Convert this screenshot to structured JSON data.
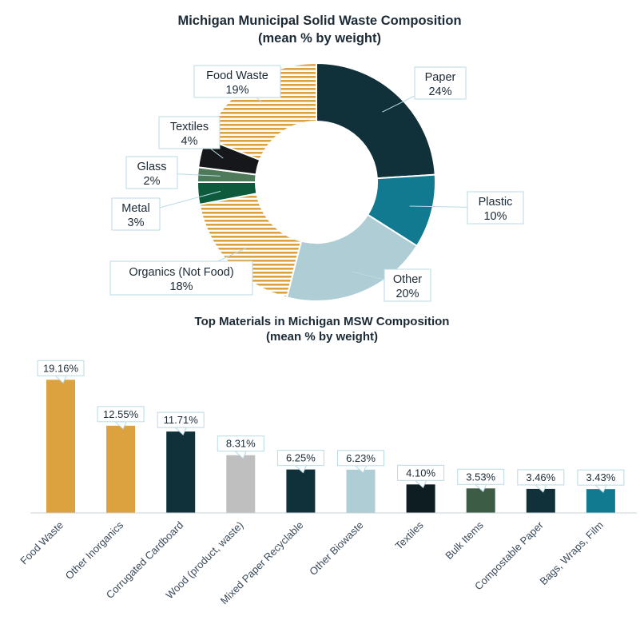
{
  "chart_data": [
    {
      "type": "pie",
      "title": "Michigan Municipal Solid Waste Composition",
      "subtitle": "(mean % by weight)",
      "slices": [
        {
          "label": "Paper",
          "value": 24,
          "display": "24%",
          "color": "#11313a",
          "pattern": "solid"
        },
        {
          "label": "Plastic",
          "value": 10,
          "display": "10%",
          "color": "#117a91",
          "pattern": "solid"
        },
        {
          "label": "Other",
          "value": 20,
          "display": "20%",
          "color": "#aecdd5",
          "pattern": "solid"
        },
        {
          "label": "Organics (Not Food)",
          "value": 18,
          "display": "18%",
          "color": "#dca240",
          "pattern": "stripes"
        },
        {
          "label": "Metal",
          "value": 3,
          "display": "3%",
          "color": "#0d5b3c",
          "pattern": "solid"
        },
        {
          "label": "Glass",
          "value": 2,
          "display": "2%",
          "color": "#4f7a5a",
          "pattern": "solid"
        },
        {
          "label": "Textiles",
          "value": 4,
          "display": "4%",
          "color": "#15171a",
          "pattern": "solid"
        },
        {
          "label": "Food Waste",
          "value": 19,
          "display": "19%",
          "color": "#dca240",
          "pattern": "stripes"
        }
      ]
    },
    {
      "type": "bar",
      "title": "Top Materials in Michigan MSW Composition",
      "subtitle": "(mean % by weight)",
      "categories": [
        "Food Waste",
        "Other Inorganics",
        "Corrugated Cardboard",
        "Wood (product, waste)",
        "Mixed Paper Recyclable",
        "Other Biowaste",
        "Textiles",
        "Bulk Items",
        "Compostable Paper",
        "Bags, Wraps, Film"
      ],
      "values": [
        19.16,
        12.55,
        11.71,
        8.31,
        6.25,
        6.23,
        4.1,
        3.53,
        3.46,
        3.43
      ],
      "value_labels": [
        "19.16%",
        "12.55%",
        "11.71%",
        "8.31%",
        "6.25%",
        "6.23%",
        "4.10%",
        "3.53%",
        "3.46%",
        "3.43%"
      ],
      "colors": [
        "#dca240",
        "#dca240",
        "#11313a",
        "#bfbfbf",
        "#11313a",
        "#aecdd5",
        "#0d1d22",
        "#3d5c45",
        "#11313a",
        "#117a91"
      ],
      "ylim": [
        0,
        20
      ]
    }
  ]
}
